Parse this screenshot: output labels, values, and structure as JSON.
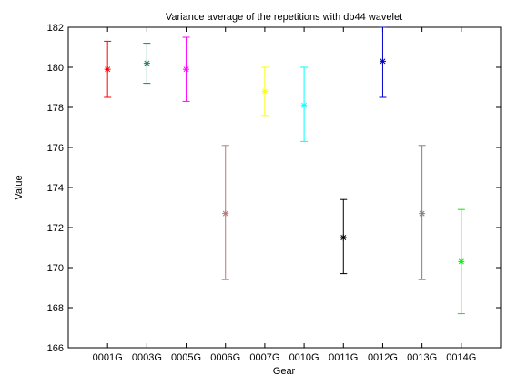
{
  "chart_data": {
    "type": "errorbar",
    "title": "Variance average of the repetitions with db44 wavelet",
    "xlabel": "Gear",
    "ylabel": "Value",
    "ylim": [
      166,
      182
    ],
    "yticks": [
      166,
      168,
      170,
      172,
      174,
      176,
      178,
      180,
      182
    ],
    "grid": false,
    "categories": [
      "0001G",
      "0003G",
      "0005G",
      "0006G",
      "0007G",
      "0010G",
      "0011G",
      "0012G",
      "0013G",
      "0014G"
    ],
    "series": [
      {
        "category": "0001G",
        "mean": 179.9,
        "lower": 178.5,
        "upper": 181.3,
        "color": "#ff0000"
      },
      {
        "category": "0003G",
        "mean": 180.2,
        "lower": 179.2,
        "upper": 181.2,
        "color": "#1b7f6a"
      },
      {
        "category": "0005G",
        "mean": 179.9,
        "lower": 178.3,
        "upper": 181.5,
        "color": "#ff00ff"
      },
      {
        "category": "0006G",
        "mean": 172.7,
        "lower": 169.4,
        "upper": 176.1,
        "color": "#b87a7a"
      },
      {
        "category": "0007G",
        "mean": 178.8,
        "lower": 177.6,
        "upper": 180.0,
        "color": "#ffff00"
      },
      {
        "category": "0010G",
        "mean": 178.1,
        "lower": 176.3,
        "upper": 180.0,
        "color": "#00ffff"
      },
      {
        "category": "0011G",
        "mean": 171.5,
        "lower": 169.7,
        "upper": 173.4,
        "color": "#000000"
      },
      {
        "category": "0012G",
        "mean": 180.3,
        "lower": 178.5,
        "upper": 182.0,
        "color": "#0000cc"
      },
      {
        "category": "0013G",
        "mean": 172.7,
        "lower": 169.4,
        "upper": 176.1,
        "color": "#808080"
      },
      {
        "category": "0014G",
        "mean": 170.3,
        "lower": 167.7,
        "upper": 172.9,
        "color": "#00ee00"
      }
    ]
  }
}
